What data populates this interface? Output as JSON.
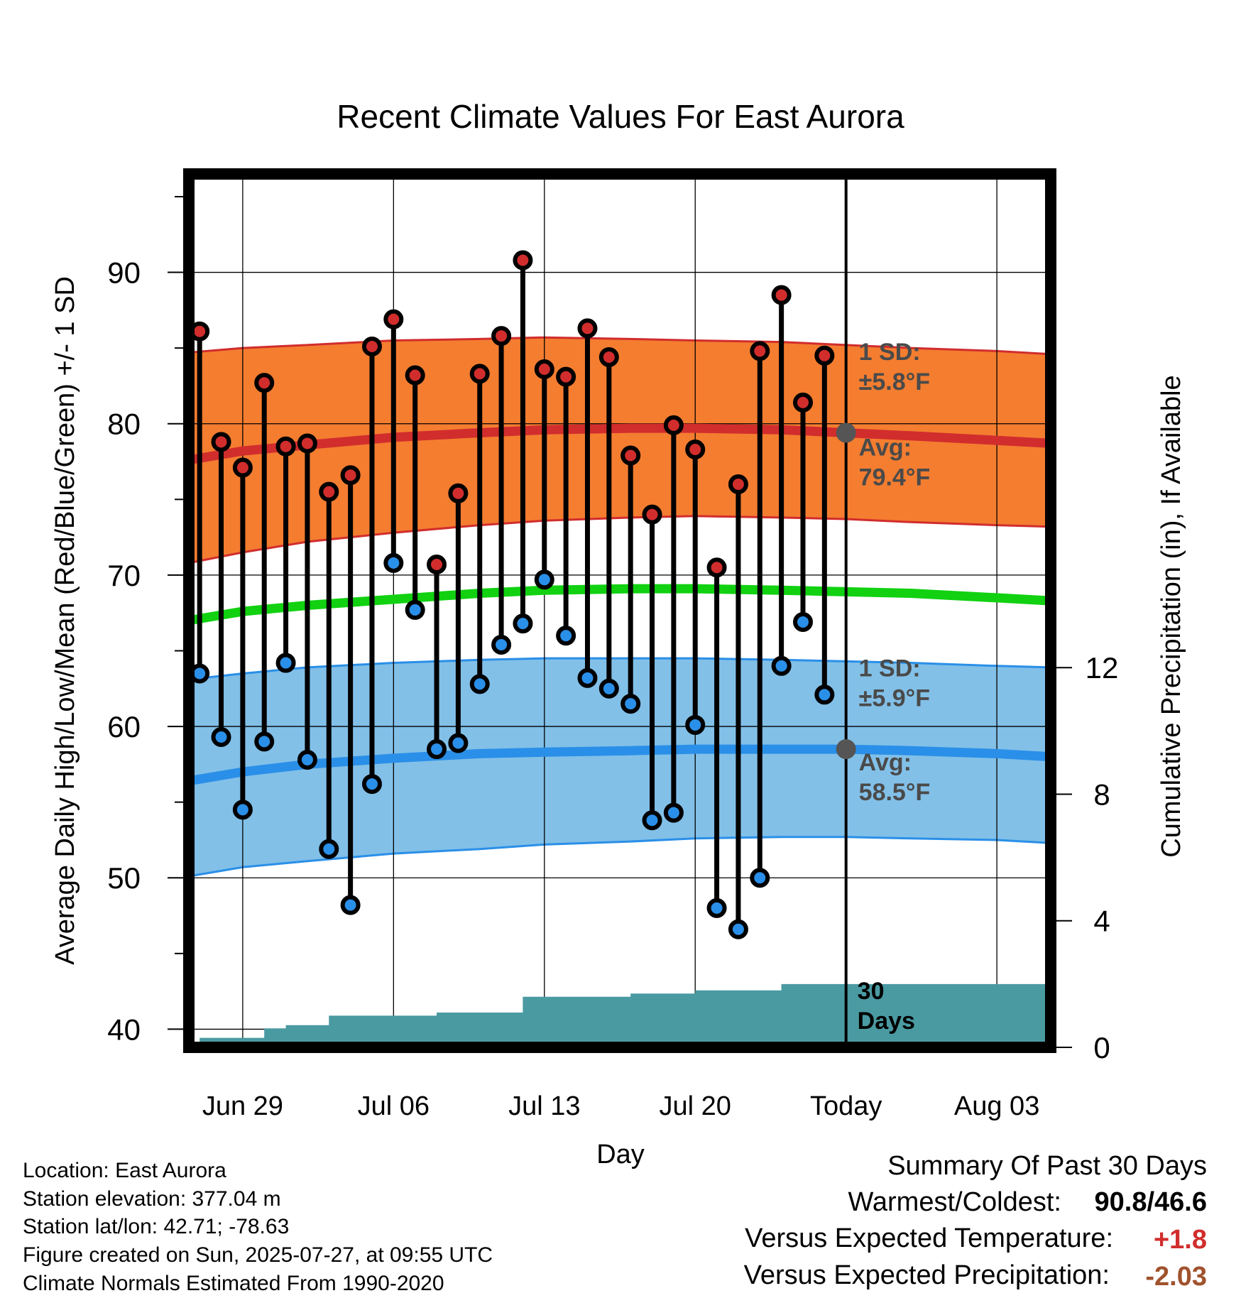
{
  "chart_data": {
    "type": "line",
    "title": "Recent Climate Values For East Aurora",
    "xlabel": "Day",
    "ylabel": "Average Daily High/Low/Mean (Red/Blue/Green) +/- 1 SD",
    "y2label": "Cumulative Precipitation (in), If Available",
    "ylim": [
      38.8,
      96.5
    ],
    "y2lim": [
      0,
      27.6
    ],
    "xlim": [
      -30.5,
      9.5
    ],
    "x_ticks": [
      {
        "label": "Jun 29",
        "day": -28
      },
      {
        "label": "Jul 06",
        "day": -21
      },
      {
        "label": "Jul 13",
        "day": -14
      },
      {
        "label": "Jul 20",
        "day": -7
      },
      {
        "label": "Today",
        "day": 0
      },
      {
        "label": "Aug 03",
        "day": 7
      }
    ],
    "y_ticks": [
      40,
      50,
      60,
      70,
      80,
      90
    ],
    "y2_ticks": [
      0,
      4,
      8,
      12
    ],
    "grid": true,
    "today_day": 0,
    "days": [
      -30,
      -29,
      -28,
      -27,
      -26,
      -25,
      -24,
      -23,
      -22,
      -21,
      -20,
      -19,
      -18,
      -17,
      -16,
      -15,
      -14,
      -13,
      -12,
      -11,
      -10,
      -9,
      -8,
      -7,
      -6,
      -5,
      -4,
      -3,
      -2,
      -1
    ],
    "series": [
      {
        "name": "High",
        "color": "#d12d2d",
        "values": [
          86.1,
          78.8,
          77.1,
          82.7,
          78.5,
          78.7,
          75.5,
          76.6,
          85.1,
          86.9,
          83.2,
          70.7,
          75.4,
          83.3,
          85.8,
          90.8,
          83.6,
          83.1,
          86.3,
          84.4,
          77.9,
          74.0,
          79.9,
          78.3,
          70.5,
          76.0,
          84.8,
          88.5,
          81.4,
          84.5
        ]
      },
      {
        "name": "Low",
        "color": "#2a8fe8",
        "values": [
          63.5,
          59.3,
          54.5,
          59.0,
          64.2,
          57.8,
          51.9,
          48.2,
          56.2,
          70.8,
          67.7,
          58.5,
          58.9,
          62.8,
          65.4,
          66.8,
          69.7,
          66.0,
          63.2,
          62.5,
          61.5,
          53.8,
          54.3,
          60.1,
          48.0,
          46.6,
          50.0,
          64.0,
          66.9,
          62.1
        ]
      }
    ],
    "normal_curve_days": [
      -30.5,
      -28,
      -25,
      -21,
      -17,
      -14,
      -10,
      -7,
      -3,
      0,
      3,
      7,
      9.5
    ],
    "normal_high_avg": [
      77.6,
      78.2,
      78.6,
      79.1,
      79.4,
      79.6,
      79.7,
      79.7,
      79.6,
      79.4,
      79.2,
      78.9,
      78.7
    ],
    "normal_high_upper": [
      84.7,
      85.0,
      85.2,
      85.5,
      85.6,
      85.7,
      85.6,
      85.5,
      85.4,
      85.2,
      85.0,
      84.8,
      84.6
    ],
    "normal_high_lower": [
      70.8,
      71.5,
      72.2,
      72.8,
      73.3,
      73.6,
      73.8,
      73.9,
      73.8,
      73.7,
      73.5,
      73.3,
      73.2
    ],
    "normal_mean": [
      67.0,
      67.6,
      68.0,
      68.4,
      68.8,
      69.0,
      69.1,
      69.1,
      69.0,
      68.9,
      68.8,
      68.5,
      68.3
    ],
    "normal_low_avg": [
      56.4,
      57.0,
      57.5,
      57.9,
      58.2,
      58.3,
      58.4,
      58.5,
      58.5,
      58.5,
      58.4,
      58.2,
      58.0
    ],
    "normal_low_upper": [
      63.1,
      63.5,
      63.9,
      64.2,
      64.4,
      64.5,
      64.5,
      64.5,
      64.4,
      64.3,
      64.2,
      64.0,
      63.9
    ],
    "normal_low_lower": [
      50.1,
      50.7,
      51.1,
      51.6,
      51.9,
      52.2,
      52.4,
      52.6,
      52.7,
      52.7,
      52.6,
      52.5,
      52.3
    ],
    "precip_color": "#4a9aa2",
    "precip_days": [
      -30.5,
      -30,
      -28,
      -27,
      -26,
      -25,
      -24,
      -23,
      -22,
      -21,
      -20,
      -19,
      -18,
      -17,
      -16,
      -15,
      -14,
      -13,
      -12,
      -11,
      -10,
      -9,
      -8,
      -7,
      -6,
      -5,
      -4,
      -3,
      -2,
      -1,
      0,
      9.5
    ],
    "precip_cum": [
      0.0,
      0.3,
      0.3,
      0.6,
      0.7,
      0.7,
      1.0,
      1.0,
      1.0,
      1.0,
      1.0,
      1.1,
      1.1,
      1.1,
      1.1,
      1.6,
      1.6,
      1.6,
      1.6,
      1.6,
      1.7,
      1.7,
      1.7,
      1.8,
      1.8,
      1.8,
      1.8,
      2.0,
      2.0,
      2.0,
      2.0,
      2.0
    ],
    "annotations": {
      "high_sd": [
        "1 SD:",
        "±5.8°F"
      ],
      "high_avg": [
        "Avg:",
        "79.4°F"
      ],
      "low_sd": [
        "1 SD:",
        "±5.9°F"
      ],
      "low_avg": [
        "Avg:",
        "58.5°F"
      ],
      "days_label": [
        "30",
        "Days"
      ]
    },
    "high_avg_marker": 79.4,
    "low_avg_marker": 58.5
  },
  "info": {
    "lines": [
      "Location: East Aurora",
      "Station elevation: 377.04 m",
      "Station lat/lon: 42.71; -78.63",
      "Figure created on Sun, 2025-07-27, at 09:55 UTC",
      "Climate Normals Estimated From 1990-2020"
    ]
  },
  "summary": {
    "heading": "Summary Of Past 30 Days",
    "warmest_label": "Warmest/Coldest:",
    "warmest_value": "90.8/46.6",
    "temp_label": "Versus Expected Temperature:",
    "temp_value": "+1.8",
    "temp_color": "#d12d2d",
    "precip_label": "Versus Expected Precipitation:",
    "precip_value": "-2.03",
    "precip_color": "#a0522d"
  }
}
